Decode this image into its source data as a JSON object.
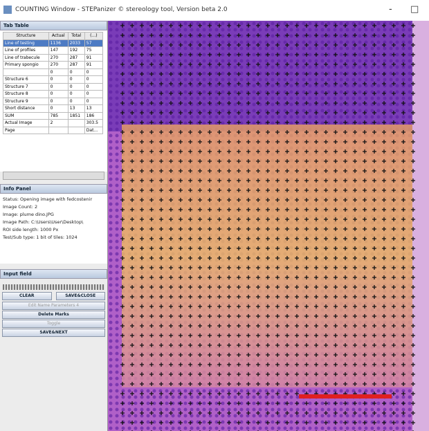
{
  "window": {
    "title": "COUNTING Window - STEPanizer © stereology tool, Version beta 2.0",
    "minimize": "-",
    "maximize": "□"
  },
  "table_panel": {
    "title": "Tab Table",
    "headers": [
      "Structure",
      "Actual",
      "Total",
      "(...)"
    ],
    "rows": [
      [
        "Line of testing",
        "1136",
        "2033",
        "57"
      ],
      [
        "Line of profiles",
        "147",
        "192",
        "75"
      ],
      [
        "Line of trabecule",
        "270",
        "287",
        "91"
      ],
      [
        "Primary spongio",
        "270",
        "287",
        "91"
      ],
      [
        "",
        "0",
        "0",
        "0"
      ],
      [
        "Structure 6",
        "0",
        "0",
        "0"
      ],
      [
        "Structure 7",
        "0",
        "0",
        "0"
      ],
      [
        "Structure 8",
        "0",
        "0",
        "0"
      ],
      [
        "Structure 9",
        "0",
        "0",
        "0"
      ],
      [
        "Short distance",
        "0",
        "13",
        "13"
      ],
      [
        "SUM",
        "785",
        "1851",
        "186"
      ],
      [
        "Actual Image",
        "2",
        "",
        "303.5"
      ],
      [
        "Page",
        "",
        "",
        "Dat..."
      ]
    ]
  },
  "info_panel": {
    "title": "Info Panel",
    "lines": [
      "Status: Opening image with fedcostenir",
      "Image Count: 2",
      "Image: plume dino.JPG",
      "Image Path: C:\\Users\\User\\Desktop\\",
      "ROI side length: 1000 Px",
      "Test/Sub type: 1 bit of tiles: 1024"
    ]
  },
  "input_panel": {
    "title": "Input field"
  },
  "buttons": {
    "clear": "CLEAR",
    "save_close": "SAVE&CLOSE",
    "edit": "Edit Name Parameters 4",
    "delete": "Delete Marks",
    "toggle": "Toggle",
    "save_next": "SAVE&NEXT"
  }
}
